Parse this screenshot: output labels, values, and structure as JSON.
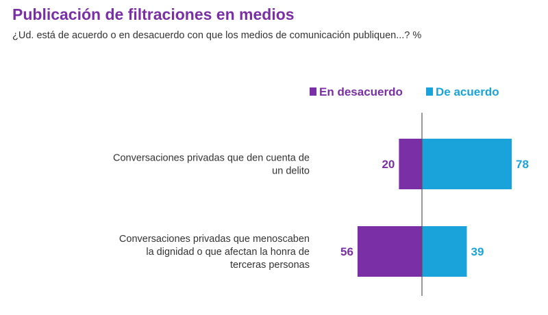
{
  "chart_data": {
    "type": "bar",
    "orientation": "horizontal-diverging",
    "title": "Publicación de filtraciones en medios",
    "subtitle": "¿Ud. está de acuerdo o en desacuerdo con que los medios de comunicación publiquen...? %",
    "categories": [
      [
        "Conversaciones privadas que den cuenta de",
        "un delito"
      ],
      [
        "Conversaciones privadas que menoscaben",
        "la dignidad o que afectan la honra de",
        "terceras personas"
      ]
    ],
    "series": [
      {
        "name": "En desacuerdo",
        "values": [
          20,
          56
        ],
        "color": "#7B2FA6",
        "direction": "left"
      },
      {
        "name": "De acuerdo",
        "values": [
          78,
          39
        ],
        "color": "#1AA3DB",
        "direction": "right"
      }
    ],
    "legend_position": "top-right",
    "grid": false
  },
  "colors": {
    "title": "#7B2FA6",
    "text": "#333333",
    "axis": "#555555"
  }
}
